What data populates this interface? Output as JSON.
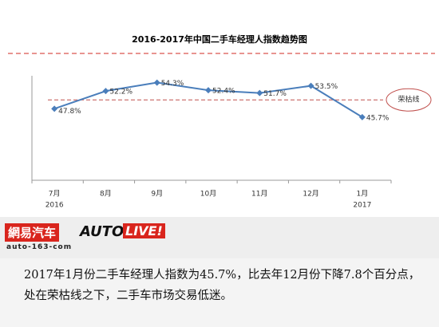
{
  "chart_data": {
    "type": "line",
    "title": "2016-2017年中国二手车经理人指数趋势图",
    "categories": [
      "7月",
      "8月",
      "9月",
      "10月",
      "11月",
      "12月",
      "1月"
    ],
    "x_sublabels": [
      "2016",
      null,
      null,
      null,
      null,
      null,
      "2017"
    ],
    "series": [
      {
        "name": "二手车经理人指数",
        "color": "#4a7ebb",
        "values": [
          47.8,
          52.2,
          54.3,
          52.4,
          51.7,
          53.5,
          45.7
        ],
        "value_labels": [
          "47.8%",
          "52.2%",
          "54.3%",
          "52.4%",
          "51.7%",
          "53.5%",
          "45.7%"
        ]
      }
    ],
    "ylim": [
      30,
      56
    ],
    "threshold": {
      "value": 50,
      "label": "荣枯线",
      "color": "#c0504d"
    }
  },
  "branding": {
    "logo": "網易汽车",
    "url": "auto-163-com",
    "auto": "AUTO",
    "live": "LIVE!"
  },
  "caption": "2017年1月份二手车经理人指数为45.7%，比去年12月份下降7.8个百分点，处在荣枯线之下，二手车市场交易低迷。"
}
